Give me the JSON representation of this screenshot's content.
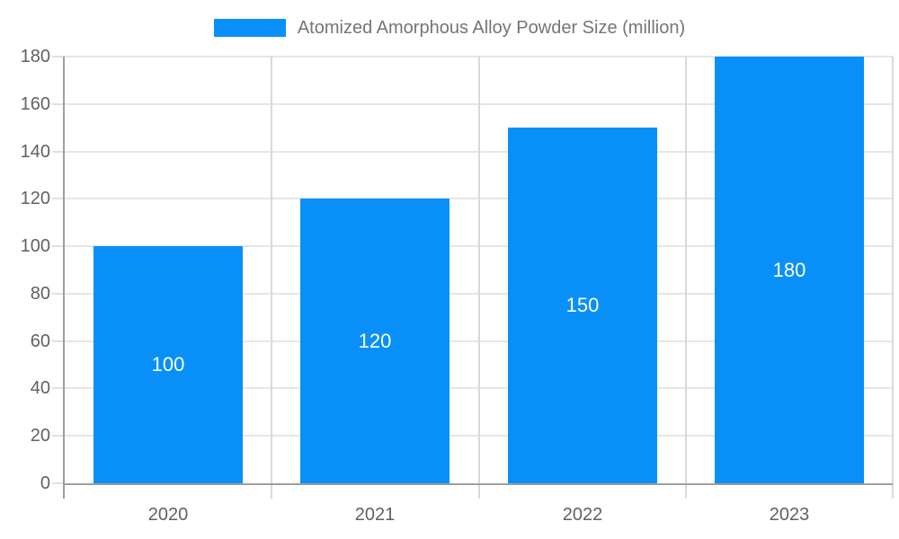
{
  "chart_data": {
    "type": "bar",
    "title": "Atomized Amorphous Alloy Powder Size (million)",
    "categories": [
      "2020",
      "2021",
      "2022",
      "2023"
    ],
    "values": [
      100,
      120,
      150,
      180
    ],
    "data_labels": [
      "100",
      "120",
      "150",
      "180"
    ],
    "xlabel": "",
    "ylabel": "",
    "ylim": [
      0,
      180
    ],
    "yticks": [
      0,
      20,
      40,
      60,
      80,
      100,
      120,
      140,
      160,
      180
    ],
    "grid": true,
    "legend_position": "top"
  },
  "colors": {
    "bar": "#0890f8",
    "grid_horizontal": "#e6e6e6",
    "grid_vertical": "#d9d9d9",
    "axis": "#9e9e9e",
    "tick_stub": "#e0e0e0",
    "axis_text": "#616161",
    "legend_text": "#757575",
    "data_label_text": "#ffffff",
    "background": "#ffffff"
  }
}
